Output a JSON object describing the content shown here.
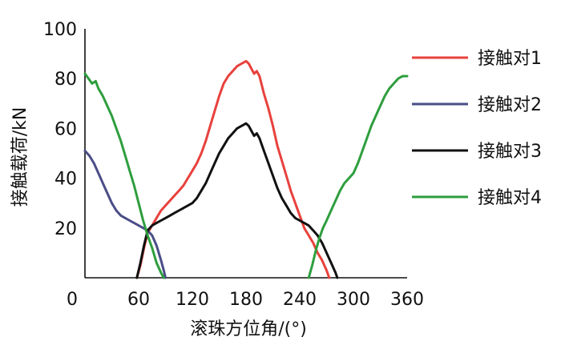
{
  "chart_data": {
    "type": "line",
    "title": "",
    "xlabel": "滚珠方位角/(°)",
    "ylabel": "接触载荷/kN",
    "xlim": [
      0,
      360
    ],
    "ylim": [
      0,
      100
    ],
    "x_ticks": [
      0,
      60,
      120,
      180,
      240,
      300,
      360
    ],
    "y_ticks": [
      20,
      40,
      60,
      80,
      100
    ],
    "x_tick_labels": [
      "0",
      "60",
      "120",
      "180",
      "240",
      "300",
      "360"
    ],
    "y_tick_labels": [
      "20",
      "40",
      "60",
      "80",
      "100"
    ],
    "grid": false,
    "legend_position": "right",
    "series": [
      {
        "name": "接触对1",
        "color": "#e8413c",
        "points": [
          [
            58,
            0
          ],
          [
            62,
            5
          ],
          [
            66,
            12
          ],
          [
            70,
            18
          ],
          [
            75,
            21
          ],
          [
            80,
            24
          ],
          [
            85,
            27
          ],
          [
            90,
            29
          ],
          [
            95,
            31
          ],
          [
            100,
            33
          ],
          [
            105,
            35
          ],
          [
            110,
            37
          ],
          [
            115,
            40
          ],
          [
            120,
            43
          ],
          [
            125,
            46
          ],
          [
            130,
            50
          ],
          [
            135,
            55
          ],
          [
            140,
            61
          ],
          [
            145,
            67
          ],
          [
            150,
            73
          ],
          [
            155,
            78
          ],
          [
            160,
            81
          ],
          [
            165,
            83
          ],
          [
            170,
            85
          ],
          [
            175,
            86
          ],
          [
            180,
            87
          ],
          [
            183,
            86
          ],
          [
            186,
            84
          ],
          [
            189,
            82
          ],
          [
            192,
            83
          ],
          [
            195,
            81
          ],
          [
            200,
            74
          ],
          [
            205,
            68
          ],
          [
            210,
            61
          ],
          [
            215,
            53
          ],
          [
            220,
            47
          ],
          [
            225,
            41
          ],
          [
            230,
            35
          ],
          [
            235,
            30
          ],
          [
            240,
            25
          ],
          [
            245,
            20
          ],
          [
            250,
            17
          ],
          [
            255,
            14
          ],
          [
            260,
            10
          ],
          [
            265,
            7
          ],
          [
            270,
            3
          ],
          [
            273,
            0
          ]
        ]
      },
      {
        "name": "接触对2",
        "color": "#4a4d86",
        "points": [
          [
            0,
            51
          ],
          [
            5,
            49
          ],
          [
            10,
            46
          ],
          [
            15,
            42
          ],
          [
            20,
            38
          ],
          [
            25,
            34
          ],
          [
            30,
            30
          ],
          [
            35,
            27
          ],
          [
            40,
            25
          ],
          [
            45,
            24
          ],
          [
            50,
            23
          ],
          [
            55,
            22
          ],
          [
            60,
            21
          ],
          [
            65,
            20
          ],
          [
            70,
            19
          ],
          [
            75,
            17
          ],
          [
            80,
            13
          ],
          [
            85,
            7
          ],
          [
            88,
            3
          ],
          [
            90,
            0
          ]
        ]
      },
      {
        "name": "接触对3",
        "color": "#111111",
        "points": [
          [
            58,
            0
          ],
          [
            62,
            6
          ],
          [
            66,
            13
          ],
          [
            70,
            19
          ],
          [
            75,
            21
          ],
          [
            80,
            22
          ],
          [
            85,
            23
          ],
          [
            90,
            24
          ],
          [
            95,
            25
          ],
          [
            100,
            26
          ],
          [
            105,
            27
          ],
          [
            110,
            28
          ],
          [
            115,
            29
          ],
          [
            120,
            30
          ],
          [
            125,
            32
          ],
          [
            130,
            35
          ],
          [
            135,
            38
          ],
          [
            140,
            42
          ],
          [
            145,
            46
          ],
          [
            150,
            50
          ],
          [
            155,
            53
          ],
          [
            160,
            56
          ],
          [
            165,
            58
          ],
          [
            170,
            60
          ],
          [
            175,
            61
          ],
          [
            180,
            62
          ],
          [
            183,
            61
          ],
          [
            186,
            59
          ],
          [
            189,
            57
          ],
          [
            192,
            58
          ],
          [
            195,
            56
          ],
          [
            200,
            51
          ],
          [
            205,
            46
          ],
          [
            210,
            41
          ],
          [
            215,
            36
          ],
          [
            220,
            32
          ],
          [
            225,
            29
          ],
          [
            230,
            26
          ],
          [
            235,
            24
          ],
          [
            240,
            23
          ],
          [
            245,
            22
          ],
          [
            250,
            21
          ],
          [
            255,
            19
          ],
          [
            260,
            17
          ],
          [
            265,
            14
          ],
          [
            270,
            10
          ],
          [
            275,
            6
          ],
          [
            280,
            2
          ],
          [
            282,
            0
          ]
        ]
      },
      {
        "name": "接触对4",
        "color": "#2e9e3e",
        "points": [
          [
            0,
            82
          ],
          [
            4,
            80
          ],
          [
            8,
            78
          ],
          [
            12,
            79
          ],
          [
            15,
            76
          ],
          [
            20,
            73
          ],
          [
            25,
            69
          ],
          [
            30,
            65
          ],
          [
            35,
            60
          ],
          [
            40,
            55
          ],
          [
            45,
            49
          ],
          [
            50,
            43
          ],
          [
            55,
            37
          ],
          [
            60,
            30
          ],
          [
            65,
            23
          ],
          [
            70,
            17
          ],
          [
            75,
            12
          ],
          [
            80,
            6
          ],
          [
            85,
            2
          ],
          [
            88,
            0
          ],
          [
            250,
            0
          ],
          [
            254,
            5
          ],
          [
            258,
            11
          ],
          [
            262,
            16
          ],
          [
            266,
            20
          ],
          [
            270,
            23
          ],
          [
            275,
            27
          ],
          [
            280,
            31
          ],
          [
            285,
            35
          ],
          [
            290,
            38
          ],
          [
            295,
            40
          ],
          [
            300,
            42
          ],
          [
            305,
            46
          ],
          [
            310,
            51
          ],
          [
            315,
            56
          ],
          [
            320,
            61
          ],
          [
            325,
            65
          ],
          [
            330,
            69
          ],
          [
            335,
            73
          ],
          [
            340,
            76
          ],
          [
            345,
            78
          ],
          [
            350,
            80
          ],
          [
            355,
            81
          ],
          [
            360,
            81
          ]
        ]
      }
    ]
  }
}
